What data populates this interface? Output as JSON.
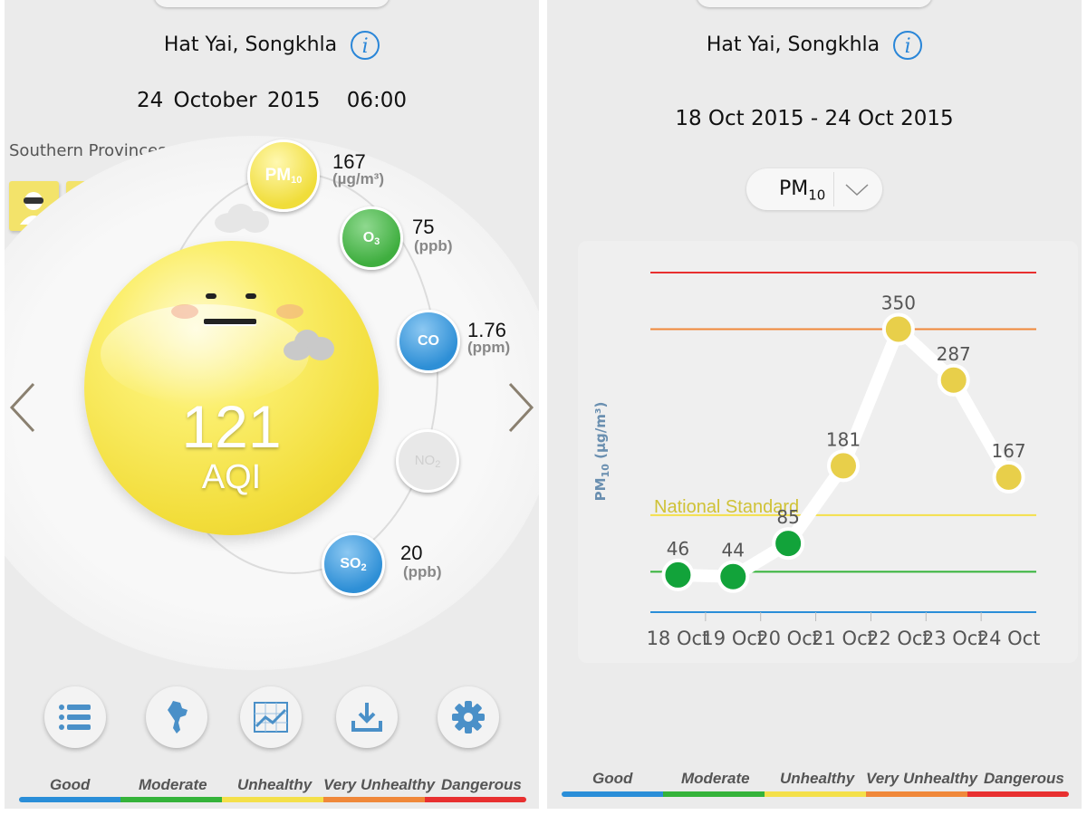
{
  "left": {
    "location": "Hat Yai, Songkhla",
    "date": "24 October 2015",
    "time": "06:00",
    "region": "Southern Provinces",
    "aqi": {
      "value": "121",
      "label": "AQI",
      "color": "#f2dd3a"
    },
    "pollutants": [
      {
        "id": "pm10",
        "name": "PM",
        "sub": "10",
        "value": "167",
        "unit": "(µg/m³)",
        "color": "#f0dd3a",
        "text_color": "#ffffff"
      },
      {
        "id": "o3",
        "name": "O",
        "sub": "3",
        "value": "75",
        "unit": "(ppb)",
        "color": "#3fae3f",
        "text_color": "#ffffff"
      },
      {
        "id": "co",
        "name": "CO",
        "sub": "",
        "value": "1.76",
        "unit": "(ppm)",
        "color": "#2e8fd6",
        "text_color": "#ffffff"
      },
      {
        "id": "no2",
        "name": "NO",
        "sub": "2",
        "value": "",
        "unit": "",
        "color": "#e6e6e6",
        "text_color": "#cfcfcf"
      },
      {
        "id": "so2",
        "name": "SO",
        "sub": "2",
        "value": "20",
        "unit": "(ppb)",
        "color": "#2e8fd6",
        "text_color": "#ffffff"
      }
    ],
    "advice_icons": [
      "mask-icon",
      "running-person-icon"
    ],
    "bottom_nav": [
      "list-icon",
      "thailand-map-icon",
      "line-chart-icon",
      "download-icon",
      "gear-icon"
    ]
  },
  "right": {
    "location": "Hat Yai, Songkhla",
    "date_range": "18 Oct 2015 - 24 Oct 2015",
    "selected_pollutant": {
      "name": "PM",
      "sub": "10"
    }
  },
  "legend": {
    "labels": [
      "Good",
      "Moderate",
      "Unhealthy",
      "Very Unhealthy",
      "Dangerous"
    ],
    "colors": [
      "#2a8ed8",
      "#35b33a",
      "#f4e04a",
      "#f0883a",
      "#e83030"
    ]
  },
  "chart_data": {
    "type": "line",
    "categories": [
      "18 Oct",
      "19 Oct",
      "20 Oct",
      "21 Oct",
      "22 Oct",
      "23 Oct",
      "24 Oct"
    ],
    "values": [
      46,
      44,
      85,
      181,
      350,
      287,
      167
    ],
    "point_colors": [
      "#12a33a",
      "#12a33a",
      "#12a33a",
      "#e8cf4a",
      "#e8cf4a",
      "#e8cf4a",
      "#e8cf4a"
    ],
    "ylabel": "PM10 (µg/m³)",
    "ylabel_main": "PM",
    "ylabel_sub": "10",
    "ylabel_unit": " (µg/m³)",
    "annotation": "National Standard",
    "reference_lines": [
      {
        "color": "#2a8ed8",
        "value": 0
      },
      {
        "color": "#35b33a",
        "value": 50
      },
      {
        "color": "#f4e04a",
        "value": 120
      },
      {
        "color": "#f0883a",
        "value": 350
      },
      {
        "color": "#e83030",
        "value": 420
      }
    ],
    "ylim": [
      0,
      420
    ],
    "grid": false
  }
}
